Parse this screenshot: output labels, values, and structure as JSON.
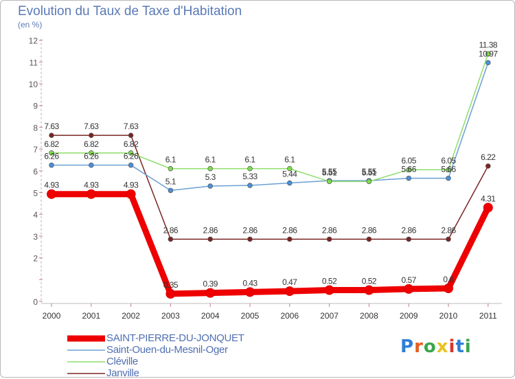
{
  "title": "Evolution du Taux de Taxe d'Habitation",
  "subtitle": "(en %)",
  "logo": {
    "letters": [
      "P",
      "r",
      "o",
      "x",
      "i",
      "t",
      "i"
    ],
    "colors": [
      "#2e7fd6",
      "#e85d1f",
      "#3aa64a",
      "#e8c21f",
      "#d8352a",
      "#2e7fd6",
      "#3aa64a"
    ]
  },
  "chart_data": {
    "type": "line",
    "x": [
      "2000",
      "2001",
      "2002",
      "2003",
      "2004",
      "2005",
      "2006",
      "2007",
      "2008",
      "2009",
      "2010",
      "2011"
    ],
    "ylim": [
      0,
      12
    ],
    "yticks": [
      "0",
      "",
      "2",
      "3",
      "4",
      "5",
      "6",
      "7",
      "8",
      "9",
      "10",
      "11",
      "12"
    ],
    "grid": false,
    "legend_position": "bottom-left",
    "series": [
      {
        "name": "SAINT-PIERRE-DU-JONQUET",
        "color": "#ee0000",
        "width": 9,
        "values": [
          4.93,
          4.93,
          4.93,
          0.35,
          0.39,
          0.43,
          0.47,
          0.52,
          0.52,
          0.57,
          0.6,
          4.31
        ],
        "labels": [
          "4.93",
          "4.93",
          "4.93",
          "0.35",
          "0.39",
          "0.43",
          "0.47",
          "0.52",
          "0.52",
          "0.57",
          "0.6",
          "4.31"
        ]
      },
      {
        "name": "Saint-Ouen-du-Mesnil-Oger",
        "color": "#6a9fd4",
        "width": 1.5,
        "values": [
          6.26,
          6.26,
          6.26,
          5.1,
          5.3,
          5.33,
          5.44,
          5.55,
          5.55,
          5.66,
          5.66,
          10.97
        ],
        "labels": [
          "6.26",
          "6.26",
          "6.26",
          "5.1",
          "5.3",
          "5.33",
          "5.44",
          "5.55",
          "5.55",
          "5.66",
          "5.66",
          "10.97"
        ]
      },
      {
        "name": "Cléville",
        "color": "#8ede6a",
        "width": 1.5,
        "values": [
          6.82,
          6.82,
          6.82,
          6.1,
          6.1,
          6.1,
          6.1,
          5.51,
          5.51,
          6.05,
          6.05,
          11.38
        ],
        "labels": [
          "6.82",
          "6.82",
          "6.82",
          "6.1",
          "6.1",
          "6.1",
          "6.1",
          "5.51",
          "5.51",
          "6.05",
          "6.05",
          "11.38"
        ]
      },
      {
        "name": "Janville",
        "color": "#7a2424",
        "width": 1.5,
        "values": [
          7.63,
          7.63,
          7.63,
          2.86,
          2.86,
          2.86,
          2.86,
          2.86,
          2.86,
          2.86,
          2.86,
          6.22
        ],
        "labels": [
          "7.63",
          "7.63",
          "7.63",
          "2.86",
          "2.86",
          "2.86",
          "2.86",
          "2.86",
          "2.86",
          "2.86",
          "2.86",
          "6.22"
        ]
      }
    ]
  }
}
